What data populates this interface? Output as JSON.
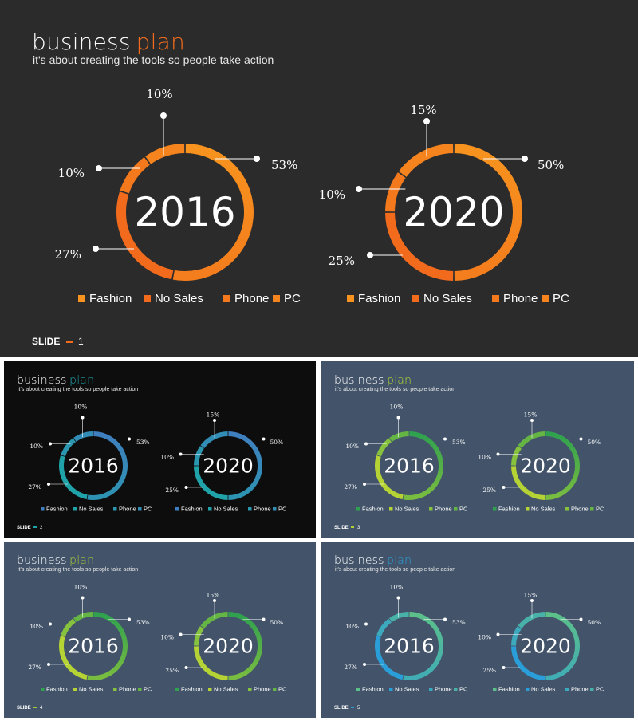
{
  "slides": [
    {
      "title_word1": "business",
      "title_word2": "plan",
      "subtitle": "it's about creating the tools so people take action",
      "footer_label": "SLIDE",
      "footer_number": "1",
      "colors": {
        "background": "#2b2b2b",
        "accent": "#f26b1d",
        "ring_top": "#f7931e",
        "ring_bottom": "#f26b1d"
      }
    },
    {
      "title_word1": "business",
      "title_word2": "plan",
      "subtitle": "it's about creating the tools so people take action",
      "footer_label": "SLIDE",
      "footer_number": "2",
      "colors": {
        "background": "#0d0d0d",
        "accent": "#1fa3a8",
        "ring_top": "#3f7fbf",
        "ring_bottom": "#1fa3a8"
      }
    },
    {
      "title_word1": "business",
      "title_word2": "plan",
      "subtitle": "it's about creating the tools so people take action",
      "footer_label": "SLIDE",
      "footer_number": "3",
      "colors": {
        "background": "#43546a",
        "accent": "#b5d334",
        "ring_top": "#2fa14f",
        "ring_bottom": "#b5d334"
      }
    },
    {
      "title_word1": "business",
      "title_word2": "plan",
      "subtitle": "it's about creating the tools so people take action",
      "footer_label": "SLIDE",
      "footer_number": "4",
      "colors": {
        "background": "#43546a",
        "accent": "#a8c93a",
        "ring_top": "#2fa14f",
        "ring_bottom": "#b5d334"
      }
    },
    {
      "title_word1": "business",
      "title_word2": "plan",
      "subtitle": "it's about creating the tools so people take action",
      "footer_label": "SLIDE",
      "footer_number": "5",
      "colors": {
        "background": "#43546a",
        "accent": "#2a9ed8",
        "ring_top": "#5cc089",
        "ring_bottom": "#2a9ed8"
      }
    }
  ],
  "chart_data": [
    {
      "type": "pie",
      "variant": "donut",
      "center_label": "2016",
      "categories": [
        "Fashion",
        "No Sales",
        "Phone",
        "PC"
      ],
      "values": [
        53,
        27,
        10,
        10
      ],
      "data_labels": [
        "53%",
        "27%",
        "10%",
        "10%"
      ],
      "legend": [
        "Fashion",
        "No Sales",
        "Phone",
        "PC"
      ],
      "legend_position": "bottom"
    },
    {
      "type": "pie",
      "variant": "donut",
      "center_label": "2020",
      "categories": [
        "Fashion",
        "No Sales",
        "Phone",
        "PC"
      ],
      "values": [
        50,
        25,
        10,
        15
      ],
      "data_labels": [
        "50%",
        "25%",
        "10%",
        "15%"
      ],
      "legend": [
        "Fashion",
        "No Sales",
        "Phone",
        "PC"
      ],
      "legend_position": "bottom"
    }
  ]
}
